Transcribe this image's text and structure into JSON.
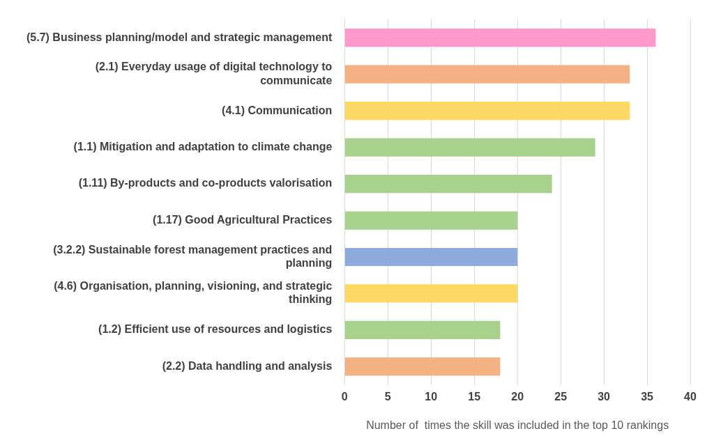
{
  "chart_data": {
    "type": "bar",
    "orientation": "horizontal",
    "xlabel": "Number of  times the skill was included in the top 10 rankings",
    "categories": [
      "(5.7) Business planning/model and strategic management",
      "(2.1) Everyday usage of digital technology to communicate",
      "(4.1) Communication",
      "(1.1) Mitigation and adaptation to climate change",
      "(1.11) By-products and co-products valorisation",
      "(1.17) Good Agricultural Practices",
      "(3.2.2) Sustainable forest management practices and planning",
      "(4.6) Organisation, planning, visioning, and strategic thinking",
      "(1.2) Efficient use of resources and logistics",
      "(2.2) Data handling and analysis"
    ],
    "values": [
      36,
      33,
      33,
      29,
      24,
      20,
      20,
      20,
      18,
      18
    ],
    "colors": [
      "#ff99cc",
      "#f4b183",
      "#ffd966",
      "#a9d18e",
      "#a9d18e",
      "#a9d18e",
      "#8faadc",
      "#ffd966",
      "#a9d18e",
      "#f4b183"
    ],
    "xlim": [
      0,
      40
    ],
    "xticks": [
      0,
      5,
      10,
      15,
      20,
      25,
      30,
      35,
      40
    ],
    "grid": "x",
    "legend": false
  }
}
